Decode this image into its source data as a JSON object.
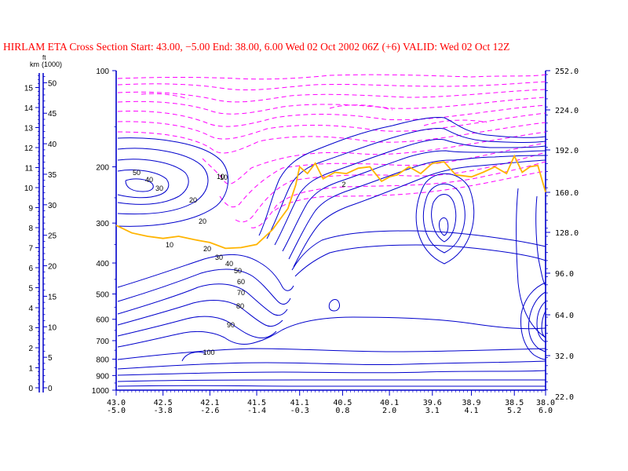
{
  "title": "HIRLAM ETA Cross Section Start:  43.00,  −5.00 End:  38.00,   6.00 Wed 02 Oct 2002 06Z  (+6) VALID: Wed 02 Oct 12Z",
  "colors": {
    "title": "#ff0000",
    "axis": "#0000cc",
    "wind_contours": "#0000cc",
    "temp_contours": "#ff00ff",
    "tropopause": "#ffb400",
    "labels": "#000000"
  },
  "left_scales": {
    "km_label": "km",
    "ft_label": "ft",
    "ft_unit": "(1000)",
    "km_ticks": [
      "0",
      "1",
      "2",
      "3",
      "4",
      "5",
      "6",
      "7",
      "8",
      "9",
      "10",
      "11",
      "12",
      "13",
      "14",
      "15"
    ],
    "ft_ticks": [
      "0",
      "5",
      "10",
      "15",
      "20",
      "25",
      "30",
      "35",
      "40",
      "45",
      "50"
    ]
  },
  "pressure_axis": {
    "ticks": [
      "100",
      "200",
      "300",
      "400",
      "500",
      "600",
      "700",
      "800",
      "900",
      "1000"
    ]
  },
  "right_axis": {
    "ticks": [
      "252.0",
      "224.0",
      "192.0",
      "160.0",
      "128.0",
      "96.0",
      "64.0",
      "32.0",
      "22.0"
    ]
  },
  "x_axis": {
    "lat_ticks": [
      "43.0",
      "42.5",
      "42.1",
      "41.5",
      "41.1",
      "40.5",
      "40.1",
      "39.6",
      "38.9",
      "38.5",
      "38.0"
    ],
    "lon_ticks": [
      "-5.0",
      "-3.8",
      "-2.6",
      "-1.4",
      "-0.3",
      "0.8",
      "2.0",
      "3.1",
      "4.1",
      "5.2",
      "6.0"
    ]
  },
  "contour_labels": {
    "wind": [
      "50",
      "40",
      "30",
      "20",
      "20",
      "10",
      "10",
      "20",
      "30",
      "40",
      "50",
      "60",
      "70",
      "80",
      "90",
      "100"
    ],
    "temp": [
      "10",
      "2"
    ]
  },
  "chart_data": {
    "type": "line",
    "title": "HIRLAM ETA Cross Section Start:  43.00,  −5.00 End:  38.00,   6.00 Wed 02 Oct 2002 06Z  (+6) VALID: Wed 02 Oct 12Z",
    "xlabel": "",
    "ylabel": "",
    "x_categories_lat": [
      "43.0",
      "42.5",
      "42.1",
      "41.5",
      "41.1",
      "40.5",
      "40.1",
      "39.6",
      "38.9",
      "38.5",
      "38.0"
    ],
    "x_categories_lon": [
      "-5.0",
      "-3.8",
      "-2.6",
      "-1.4",
      "-0.3",
      "0.8",
      "2.0",
      "3.1",
      "4.1",
      "5.2",
      "6.0"
    ],
    "y_pressure_levels_hpa": [
      100,
      200,
      300,
      400,
      500,
      600,
      700,
      800,
      900,
      1000
    ],
    "y_log_scale": true,
    "y_reversed": true,
    "series": [
      {
        "kind": "tropopause",
        "lon": [
          -5.0,
          -4.6,
          -4.2,
          -3.8,
          -3.4,
          -3.0,
          -2.6,
          -2.2,
          -1.8,
          -1.4,
          -1.0,
          -0.6,
          -0.4,
          -0.3,
          -0.1,
          0.1,
          0.3,
          0.6,
          0.9,
          1.2,
          1.5,
          1.8,
          2.0,
          2.2,
          2.5,
          2.8,
          3.1,
          3.4,
          3.7,
          4.1,
          4.4,
          4.7,
          5.0,
          5.2,
          5.4,
          5.6,
          5.8,
          6.0
        ],
        "pressure_hpa": [
          305,
          322,
          330,
          335,
          330,
          338,
          345,
          360,
          358,
          350,
          315,
          270,
          228,
          200,
          210,
          195,
          218,
          208,
          210,
          202,
          200,
          222,
          215,
          212,
          200,
          210,
          195,
          193,
          212,
          215,
          208,
          200,
          210,
          185,
          208,
          200,
          198,
          240
        ]
      }
    ]
  }
}
